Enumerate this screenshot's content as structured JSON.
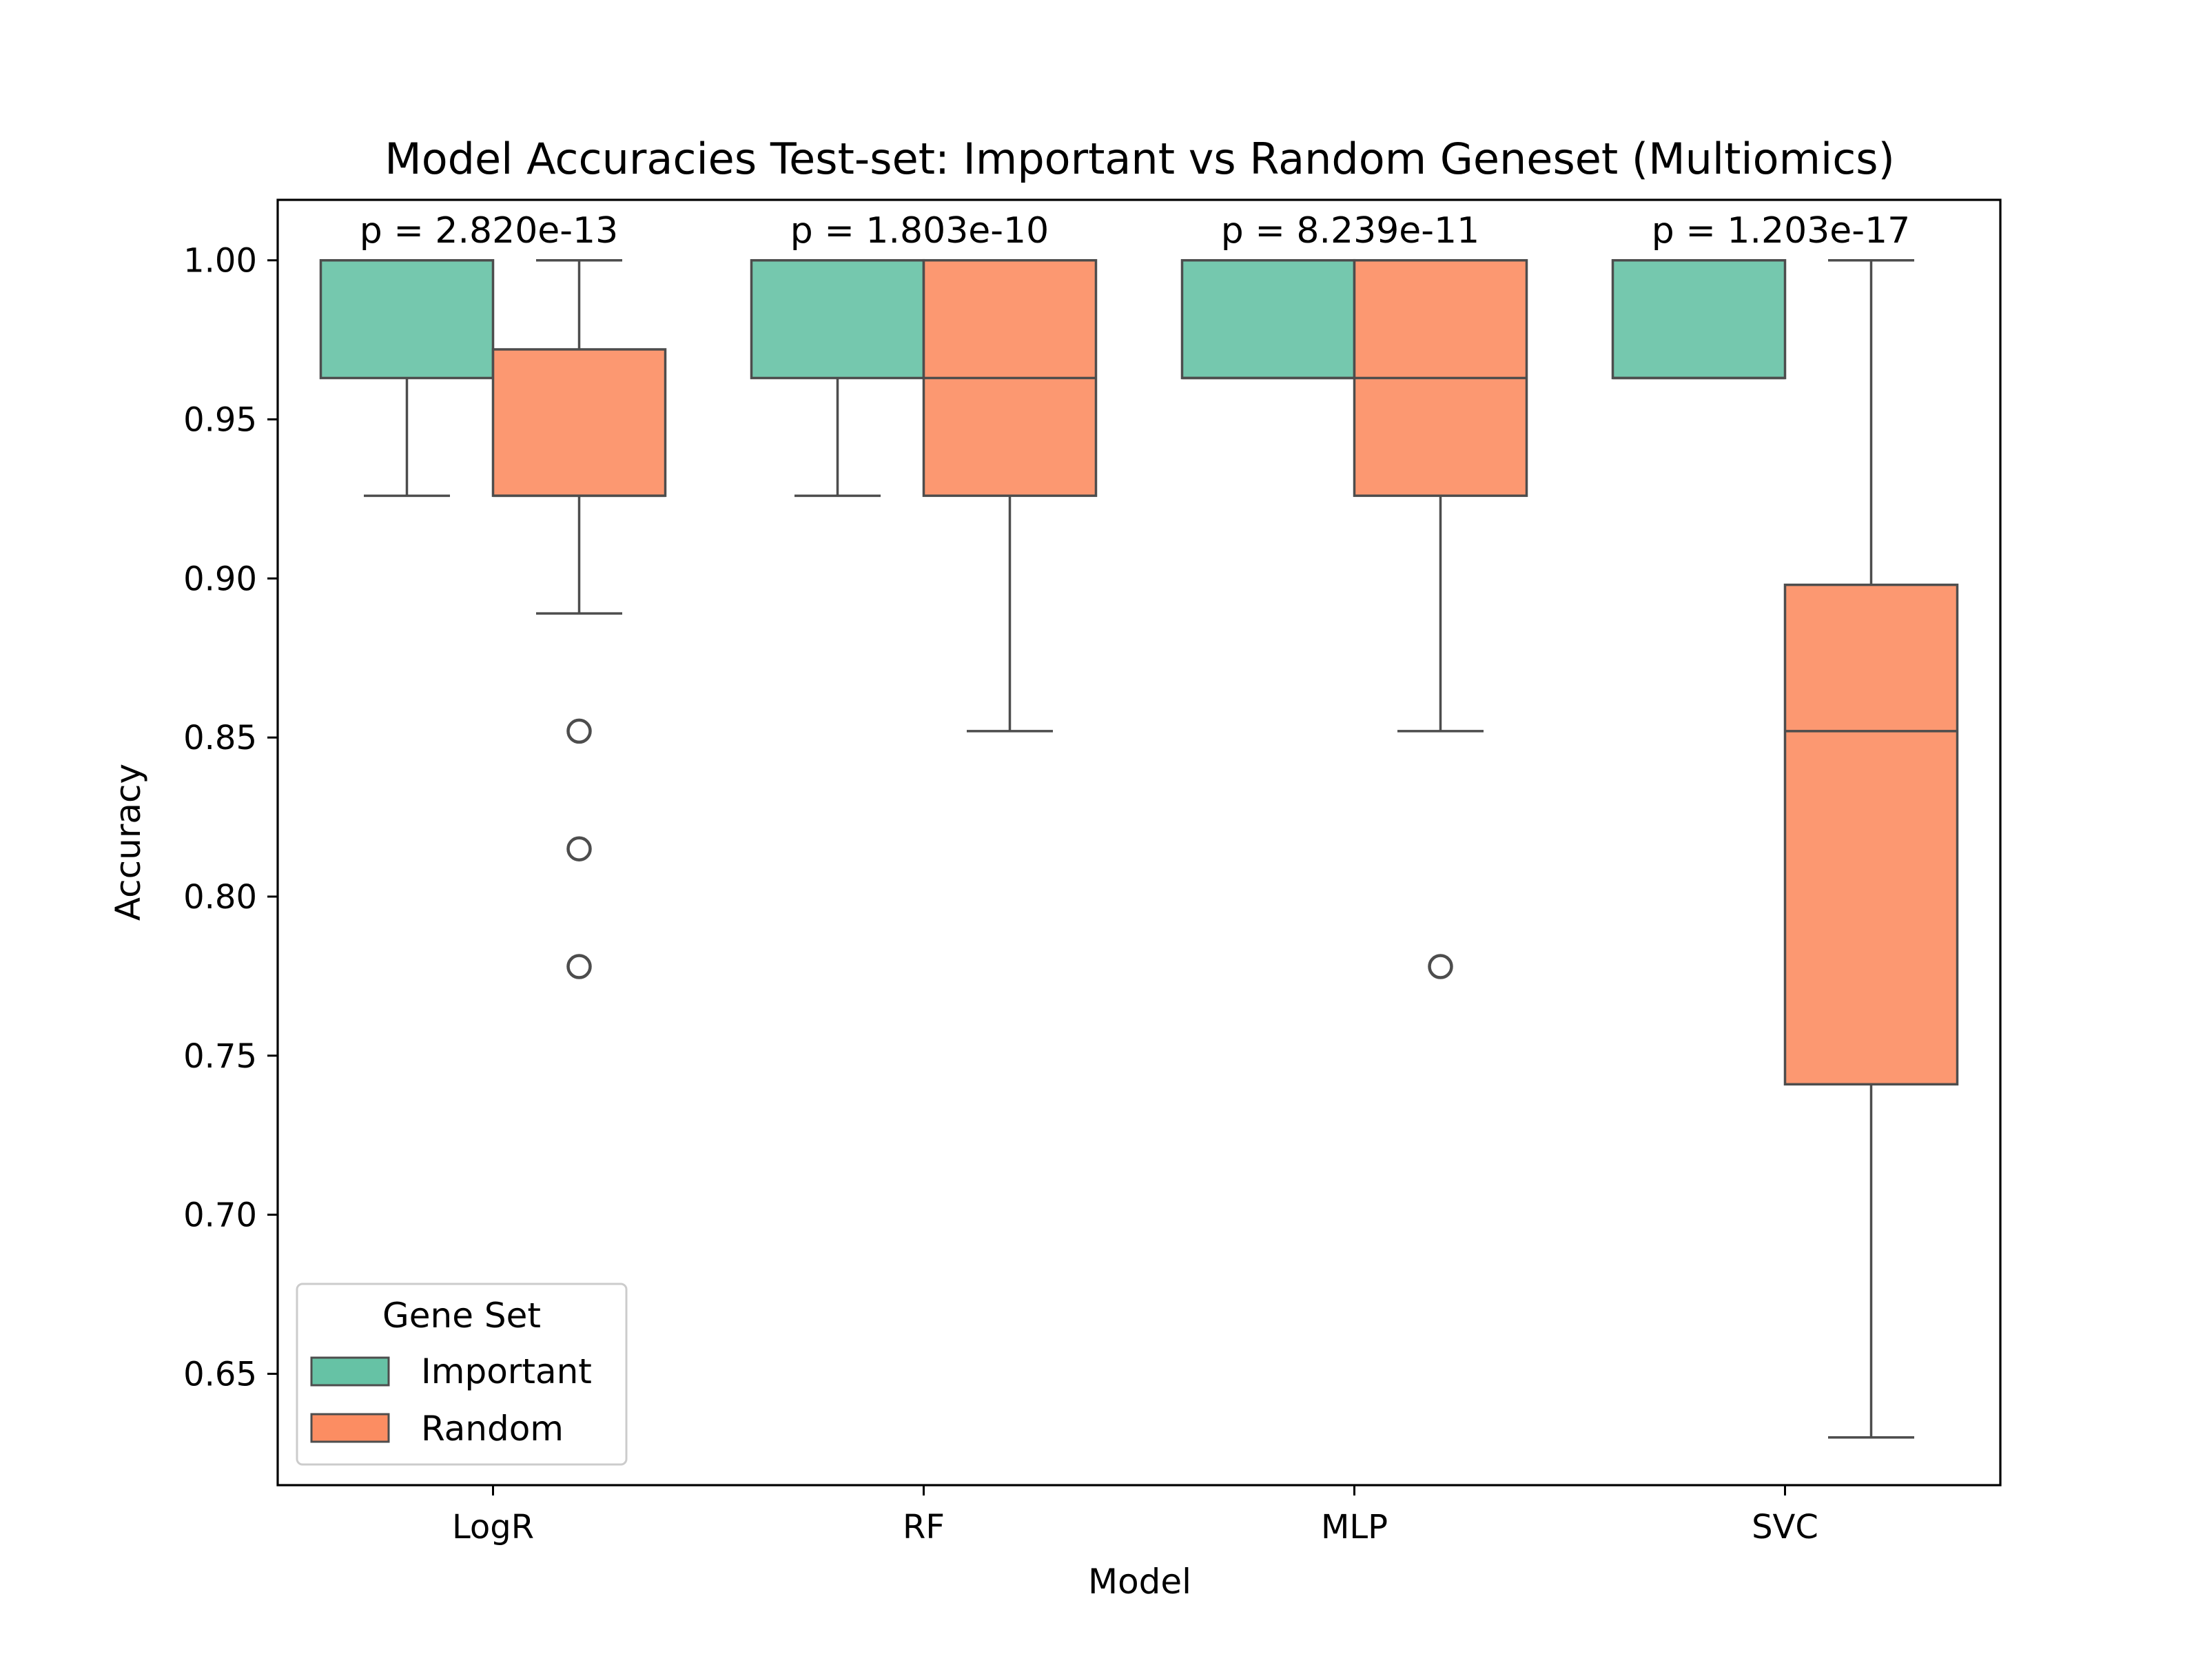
{
  "chart_data": {
    "type": "box",
    "title": "Model Accuracies Test-set: Important vs Random Geneset (Multiomics)",
    "xlabel": "Model",
    "ylabel": "Accuracy",
    "ylim": [
      0.615,
      1.019
    ],
    "yticks": [
      "0.65",
      "0.70",
      "0.75",
      "0.80",
      "0.85",
      "0.90",
      "0.95",
      "1.00"
    ],
    "categories": [
      "LogR",
      "RF",
      "MLP",
      "SVC"
    ],
    "legend": {
      "title": "Gene Set",
      "position": "lower-left"
    },
    "series": [
      {
        "name": "Important",
        "color": "#66c2a5",
        "boxes": [
          {
            "whislo": 0.926,
            "q1": 0.963,
            "med": 1.0,
            "q3": 1.0,
            "whishi": 1.0,
            "fliers": []
          },
          {
            "whislo": 0.926,
            "q1": 0.963,
            "med": 1.0,
            "q3": 1.0,
            "whishi": 1.0,
            "fliers": []
          },
          {
            "whislo": 0.963,
            "q1": 0.963,
            "med": 0.963,
            "q3": 1.0,
            "whishi": 1.0,
            "fliers": []
          },
          {
            "whislo": 0.963,
            "q1": 0.963,
            "med": 0.963,
            "q3": 1.0,
            "whishi": 1.0,
            "fliers": []
          }
        ]
      },
      {
        "name": "Random",
        "color": "#fc8d62",
        "boxes": [
          {
            "whislo": 0.889,
            "q1": 0.926,
            "med": 0.926,
            "q3": 0.972,
            "whishi": 1.0,
            "fliers": [
              0.852,
              0.815,
              0.778
            ]
          },
          {
            "whislo": 0.852,
            "q1": 0.926,
            "med": 0.963,
            "q3": 1.0,
            "whishi": 1.0,
            "fliers": []
          },
          {
            "whislo": 0.852,
            "q1": 0.926,
            "med": 0.963,
            "q3": 1.0,
            "whishi": 1.0,
            "fliers": [
              0.778
            ]
          },
          {
            "whislo": 0.63,
            "q1": 0.741,
            "med": 0.852,
            "q3": 0.898,
            "whishi": 1.0,
            "fliers": []
          }
        ]
      }
    ],
    "annotations": [
      "p = 2.820e-13",
      "p = 1.803e-10",
      "p = 8.239e-11",
      "p = 1.203e-17"
    ]
  }
}
